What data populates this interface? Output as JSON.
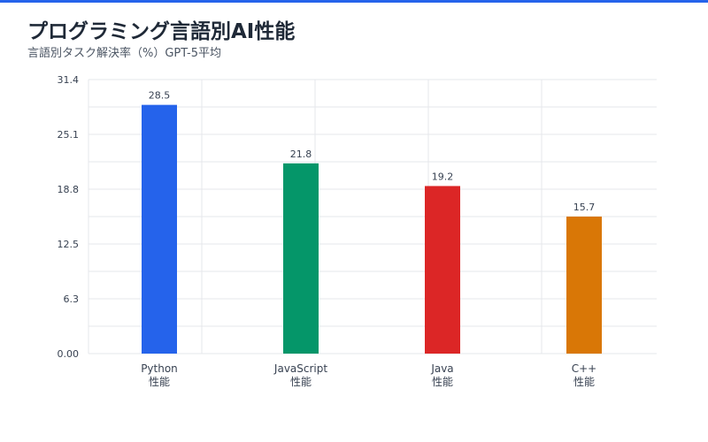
{
  "header": {
    "title": "プログラミング言語別AI性能",
    "subtitle": "言語別タスク解決率（%）GPT-5平均"
  },
  "colors": {
    "accent": "#2563eb",
    "grid": "#e5e7eb"
  },
  "chart_data": {
    "type": "bar",
    "title": "プログラミング言語別AI性能",
    "subtitle": "言語別タスク解決率（%）GPT-5平均",
    "categories": [
      "Python",
      "JavaScript",
      "Java",
      "C++"
    ],
    "category_sublabels": [
      "性能",
      "性能",
      "性能",
      "性能"
    ],
    "values": [
      28.5,
      21.8,
      19.2,
      15.7
    ],
    "value_labels": [
      "28.5",
      "21.8",
      "19.2",
      "15.7"
    ],
    "bar_colors": [
      "#2563eb",
      "#059669",
      "#dc2626",
      "#d97706"
    ],
    "y_ticks": [
      "0.00",
      "6.3",
      "12.5",
      "18.8",
      "25.1",
      "31.4"
    ],
    "ylim": [
      0,
      31.4
    ],
    "grid": true,
    "xlabel": "",
    "ylabel": ""
  }
}
